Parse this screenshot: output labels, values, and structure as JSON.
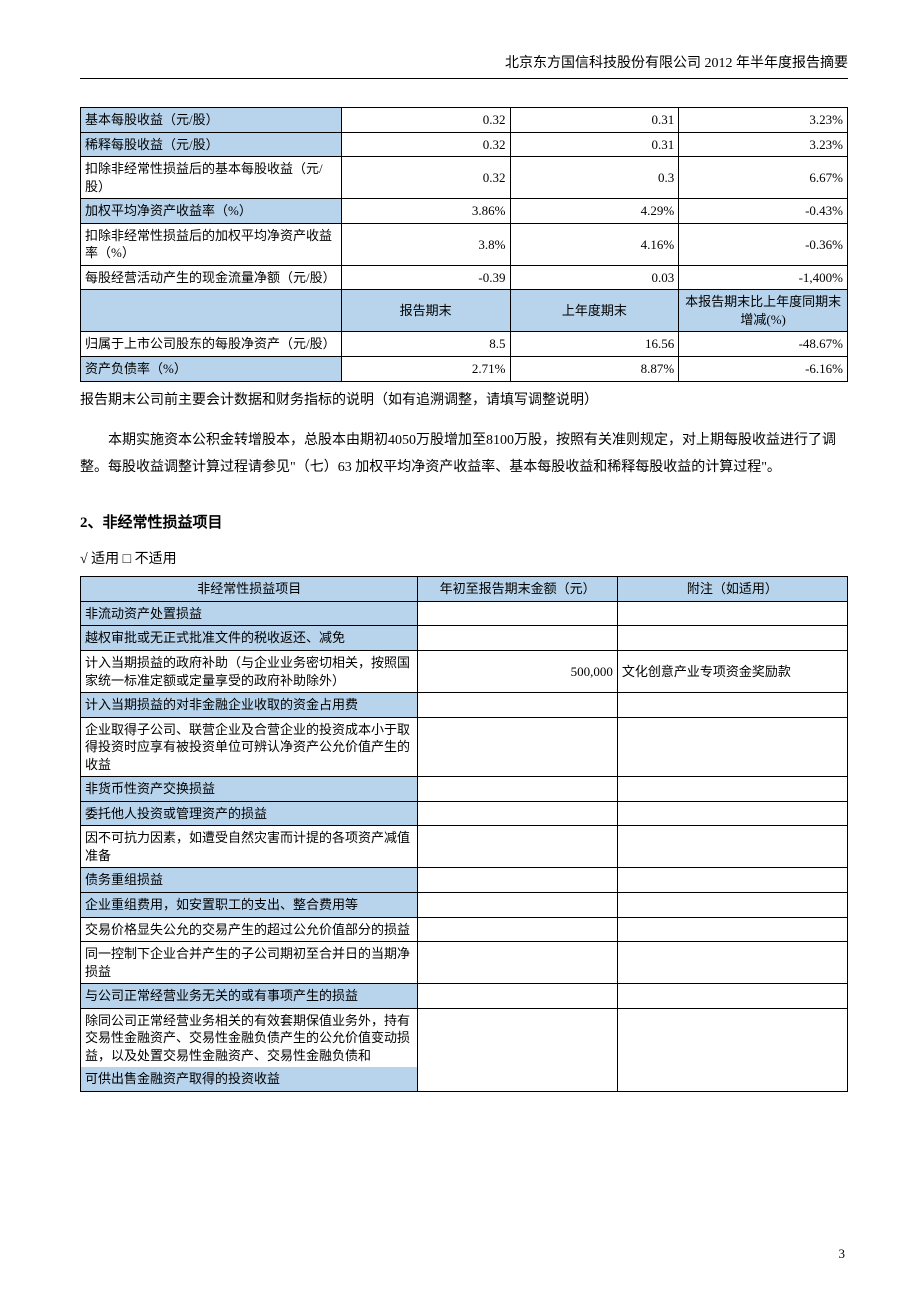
{
  "header": "北京东方国信科技股份有限公司 2012 年半年度报告摘要",
  "table1": {
    "rows": [
      {
        "label": "基本每股收益（元/股）",
        "v1": "0.32",
        "v2": "0.31",
        "v3": "3.23%",
        "blue": true
      },
      {
        "label": "稀释每股收益（元/股）",
        "v1": "0.32",
        "v2": "0.31",
        "v3": "3.23%",
        "blue": true
      },
      {
        "label": "扣除非经常性损益后的基本每股收益（元/股）",
        "v1": "0.32",
        "v2": "0.3",
        "v3": "6.67%",
        "blue": false
      },
      {
        "label": "加权平均净资产收益率（%）",
        "v1": "3.86%",
        "v2": "4.29%",
        "v3": "-0.43%",
        "blue": true
      },
      {
        "label": "扣除非经常性损益后的加权平均净资产收益率（%）",
        "v1": "3.8%",
        "v2": "4.16%",
        "v3": "-0.36%",
        "blue": false
      },
      {
        "label": "每股经营活动产生的现金流量净额（元/股）",
        "v1": "-0.39",
        "v2": "0.03",
        "v3": "-1,400%",
        "blue": false
      }
    ],
    "mid_headers": {
      "c2": "报告期末",
      "c3": "上年度期末",
      "c4": "本报告期末比上年度同期末增减(%)"
    },
    "rows2": [
      {
        "label": "归属于上市公司股东的每股净资产（元/股）",
        "v1": "8.5",
        "v2": "16.56",
        "v3": "-48.67%",
        "blue": false
      },
      {
        "label": "资产负债率（%）",
        "v1": "2.71%",
        "v2": "8.87%",
        "v3": "-6.16%",
        "blue": true
      }
    ]
  },
  "para1": "报告期末公司前主要会计数据和财务指标的说明（如有追溯调整，请填写调整说明）",
  "para2": "本期实施资本公积金转增股本，总股本由期初4050万股增加至8100万股，按照有关准则规定，对上期每股收益进行了调整。每股收益调整计算过程请参见\"（七）63 加权平均净资产收益率、基本每股收益和稀释每股收益的计算过程\"。",
  "section2_title": "2、非经常性损益项目",
  "applicable": "√ 适用 □ 不适用",
  "table2": {
    "headers": {
      "c1": "非经常性损益项目",
      "c2": "年初至报告期末金额（元）",
      "c3": "附注（如适用）"
    },
    "rows": [
      {
        "label": "非流动资产处置损益",
        "amt": "",
        "note": "",
        "blue": true
      },
      {
        "label": "越权审批或无正式批准文件的税收返还、减免",
        "amt": "",
        "note": "",
        "blue": true
      },
      {
        "label": "计入当期损益的政府补助（与企业业务密切相关，按照国家统一标准定额或定量享受的政府补助除外）",
        "amt": "500,000",
        "note": "文化创意产业专项资金奖励款",
        "blue": false
      },
      {
        "label": "计入当期损益的对非金融企业收取的资金占用费",
        "amt": "",
        "note": "",
        "blue": true
      },
      {
        "label": "企业取得子公司、联营企业及合营企业的投资成本小于取得投资时应享有被投资单位可辨认净资产公允价值产生的收益",
        "amt": "",
        "note": "",
        "blue": false
      },
      {
        "label": "非货币性资产交换损益",
        "amt": "",
        "note": "",
        "blue": true
      },
      {
        "label": "委托他人投资或管理资产的损益",
        "amt": "",
        "note": "",
        "blue": true
      },
      {
        "label": "因不可抗力因素，如遭受自然灾害而计提的各项资产减值准备",
        "amt": "",
        "note": "",
        "blue": false
      },
      {
        "label": "债务重组损益",
        "amt": "",
        "note": "",
        "blue": true
      },
      {
        "label": "企业重组费用，如安置职工的支出、整合费用等",
        "amt": "",
        "note": "",
        "blue": true
      },
      {
        "label": "交易价格显失公允的交易产生的超过公允价值部分的损益",
        "amt": "",
        "note": "",
        "blue": false
      },
      {
        "label": "同一控制下企业合并产生的子公司期初至合并日的当期净损益",
        "amt": "",
        "note": "",
        "blue": false
      },
      {
        "label": "与公司正常经营业务无关的或有事项产生的损益",
        "amt": "",
        "note": "",
        "blue": true
      },
      {
        "label": "除同公司正常经营业务相关的有效套期保值业务外，持有交易性金融资产、交易性金融负债产生的公允价值变动损益，以及处置交易性金融资产、交易性金融负债和可供出售金融资产取得的投资收益",
        "amt": "",
        "note": "",
        "blue": false,
        "lastBlue": true
      }
    ]
  },
  "page_number": "3"
}
